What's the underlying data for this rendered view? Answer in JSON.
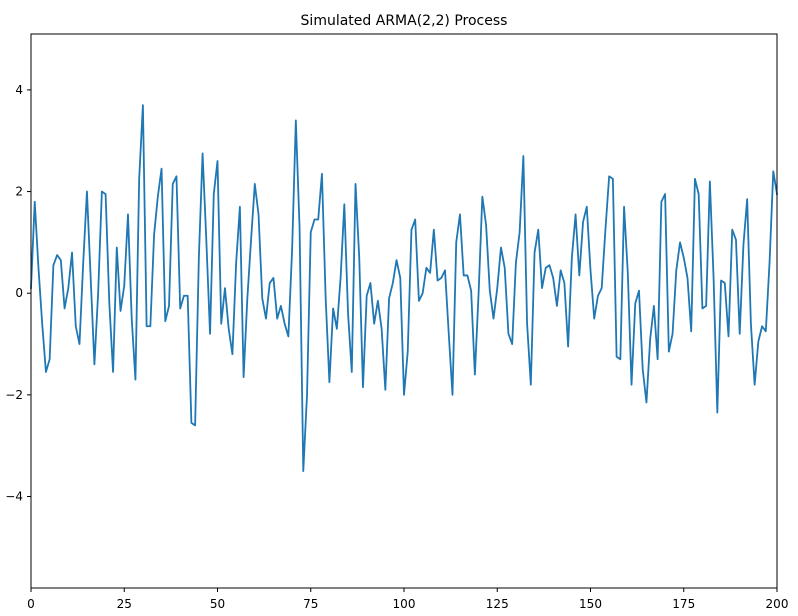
{
  "chart_data": {
    "type": "line",
    "title": "Simulated ARMA(2,2) Process",
    "xlabel": "",
    "ylabel": "",
    "xlim": [
      0,
      200
    ],
    "ylim": [
      -5.8,
      5.1
    ],
    "grid": false,
    "legend": "none",
    "xticks": [
      0,
      25,
      50,
      75,
      100,
      125,
      150,
      175,
      200
    ],
    "yticks": [
      4,
      2,
      0,
      -2,
      -4
    ],
    "ytick_labels": [
      "4",
      "2",
      "0",
      "−2",
      "−4"
    ],
    "line_color": "#1f77b4",
    "series": [
      {
        "name": "ARMA(2,2)",
        "values": [
          0.1,
          1.8,
          0.5,
          -0.6,
          -1.55,
          -1.3,
          0.55,
          0.75,
          0.65,
          -0.3,
          0.1,
          0.8,
          -0.65,
          -1.0,
          0.6,
          2.0,
          0.3,
          -1.4,
          0.0,
          2.0,
          1.95,
          -0.2,
          -1.55,
          0.9,
          -0.35,
          0.15,
          1.55,
          -0.5,
          -1.7,
          2.25,
          3.7,
          -0.65,
          -0.65,
          1.15,
          1.9,
          2.45,
          -0.55,
          -0.25,
          2.15,
          2.3,
          -0.3,
          -0.05,
          -0.05,
          -2.55,
          -2.6,
          0.7,
          2.75,
          1.05,
          -0.8,
          1.95,
          2.6,
          -0.6,
          0.1,
          -0.7,
          -1.2,
          0.6,
          1.7,
          -1.65,
          -0.1,
          1.05,
          2.15,
          1.55,
          -0.1,
          -0.5,
          0.2,
          0.3,
          -0.5,
          -0.25,
          -0.6,
          -0.85,
          0.85,
          3.4,
          1.3,
          -3.5,
          -2.0,
          1.2,
          1.45,
          1.45,
          2.35,
          -0.1,
          -1.75,
          -0.3,
          -0.7,
          0.3,
          1.75,
          -0.4,
          -1.55,
          2.15,
          0.7,
          -1.85,
          -0.05,
          0.2,
          -0.6,
          -0.15,
          -0.7,
          -1.9,
          -0.1,
          0.2,
          0.65,
          0.3,
          -2.0,
          -1.15,
          1.25,
          1.45,
          -0.15,
          0.0,
          0.5,
          0.4,
          1.25,
          0.25,
          0.3,
          0.45,
          -0.8,
          -2.0,
          1.0,
          1.55,
          0.35,
          0.35,
          0.05,
          -1.6,
          0.0,
          1.9,
          1.35,
          0.05,
          -0.5,
          0.1,
          0.9,
          0.5,
          -0.8,
          -1.0,
          0.6,
          1.2,
          2.7,
          -0.6,
          -1.8,
          0.8,
          1.25,
          0.1,
          0.5,
          0.55,
          0.3,
          -0.25,
          0.45,
          0.2,
          -1.05,
          0.7,
          1.55,
          0.35,
          1.4,
          1.7,
          0.45,
          -0.5,
          -0.05,
          0.1,
          1.25,
          2.3,
          2.25,
          -1.25,
          -1.3,
          1.7,
          0.4,
          -1.8,
          -0.2,
          0.05,
          -1.5,
          -2.15,
          -0.9,
          -0.25,
          -1.3,
          1.8,
          1.95,
          -1.15,
          -0.8,
          0.45,
          1.0,
          0.7,
          0.3,
          -0.75,
          2.25,
          1.95,
          -0.3,
          -0.25,
          2.2,
          0.3,
          -2.35,
          0.25,
          0.2,
          -0.85,
          1.25,
          1.05,
          -0.8,
          0.95,
          1.85,
          -0.6,
          -1.8,
          -0.95,
          -0.65,
          -0.75,
          0.6,
          2.4,
          1.95
        ]
      }
    ]
  }
}
